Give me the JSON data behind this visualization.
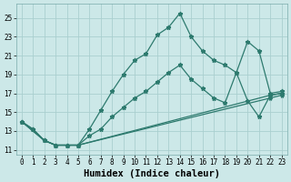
{
  "xlabel": "Humidex (Indice chaleur)",
  "bg_color": "#cce8e8",
  "grid_color": "#aacfcf",
  "line_color": "#2d7a6e",
  "xlim": [
    -0.5,
    23.5
  ],
  "ylim": [
    10.5,
    26.5
  ],
  "xticks": [
    0,
    1,
    2,
    3,
    4,
    5,
    6,
    7,
    8,
    9,
    10,
    11,
    12,
    13,
    14,
    15,
    16,
    17,
    18,
    19,
    20,
    21,
    22,
    23
  ],
  "yticks": [
    11,
    13,
    15,
    17,
    19,
    21,
    23,
    25
  ],
  "series1_x": [
    0,
    1,
    2,
    3,
    4,
    5,
    6,
    7,
    8,
    9,
    10,
    11,
    12,
    13,
    14,
    15,
    16,
    17,
    18,
    19,
    20,
    21,
    22,
    23
  ],
  "series1_y": [
    14.0,
    13.2,
    12.0,
    11.5,
    11.5,
    11.5,
    13.2,
    15.2,
    17.2,
    19.0,
    20.5,
    21.2,
    23.2,
    24.0,
    25.5,
    23.0,
    21.5,
    20.5,
    20.0,
    19.2,
    22.5,
    21.5,
    17.0,
    17.2
  ],
  "series2_x": [
    0,
    1,
    2,
    3,
    4,
    5,
    6,
    7,
    8,
    9,
    10,
    11,
    12,
    13,
    14,
    15,
    16,
    17,
    18,
    19,
    20,
    21,
    22,
    23
  ],
  "series2_y": [
    14.0,
    13.2,
    12.0,
    11.5,
    11.5,
    11.5,
    12.5,
    13.2,
    14.5,
    15.5,
    16.5,
    17.2,
    18.2,
    19.2,
    20.0,
    18.5,
    17.5,
    16.5,
    16.0,
    19.2,
    16.2,
    14.5,
    16.8,
    17.0
  ],
  "series3_x": [
    0,
    2,
    3,
    4,
    5,
    22,
    23
  ],
  "series3_y": [
    14.0,
    12.0,
    11.5,
    11.5,
    11.5,
    16.8,
    17.0
  ],
  "series4_x": [
    0,
    2,
    3,
    4,
    5,
    22,
    23
  ],
  "series4_y": [
    14.0,
    12.0,
    11.5,
    11.5,
    11.5,
    16.5,
    16.8
  ],
  "tick_fontsize": 5.5,
  "xlabel_fontsize": 7.5,
  "marker_size": 3.5,
  "line_width": 0.9
}
